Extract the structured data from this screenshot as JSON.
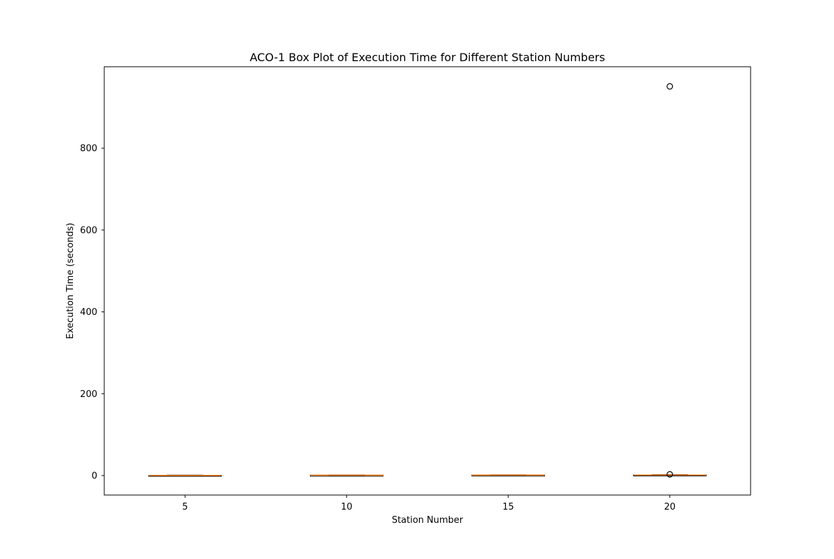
{
  "chart_data": {
    "type": "box",
    "title": "ACO-1 Box Plot of Execution Time for Different Station Numbers",
    "xlabel": "Station Number",
    "ylabel": "Execution Time (seconds)",
    "categories": [
      "5",
      "10",
      "15",
      "20"
    ],
    "boxes": [
      {
        "category": "5",
        "whisker_low": 0.1,
        "q1": 0.3,
        "median": 0.5,
        "q3": 0.8,
        "whisker_high": 1.2,
        "outliers": []
      },
      {
        "category": "10",
        "whisker_low": 0.2,
        "q1": 0.5,
        "median": 0.8,
        "q3": 1.1,
        "whisker_high": 1.5,
        "outliers": []
      },
      {
        "category": "15",
        "whisker_low": 0.3,
        "q1": 0.7,
        "median": 1.0,
        "q3": 1.4,
        "whisker_high": 1.9,
        "outliers": []
      },
      {
        "category": "20",
        "whisker_low": 0.4,
        "q1": 0.9,
        "median": 1.2,
        "q3": 1.7,
        "whisker_high": 2.3,
        "outliers": [
          3,
          951
        ]
      }
    ],
    "yticks": [
      0,
      200,
      400,
      600,
      800
    ],
    "ylim": [
      -47.6,
      999
    ],
    "grid": false,
    "legend": "none",
    "colors": {
      "box": "#000000",
      "median": "#ff7f0e",
      "outlier": "#000000",
      "axes": "#000000"
    }
  }
}
